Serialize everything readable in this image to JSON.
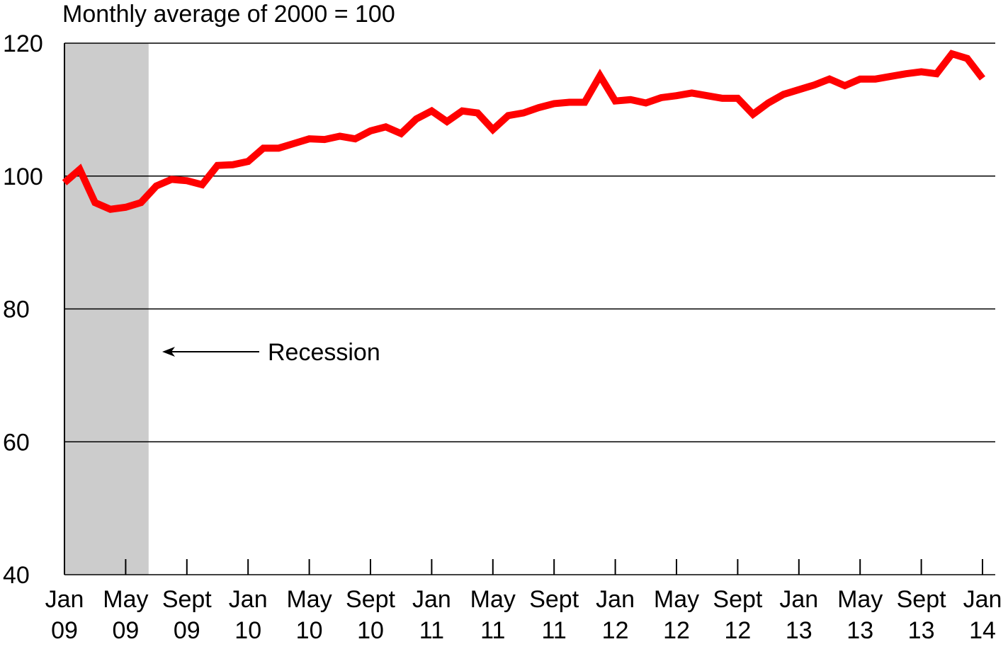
{
  "chart_data": {
    "type": "line",
    "title": "Monthly average of 2000 = 100",
    "xlabel": "",
    "ylabel": "",
    "ylim": [
      40,
      120
    ],
    "yticks": [
      40,
      60,
      80,
      100,
      120
    ],
    "grid": true,
    "x_tick_labels": [
      {
        "month": "Jan",
        "year": "09",
        "index": 0
      },
      {
        "month": "May",
        "year": "09",
        "index": 4
      },
      {
        "month": "Sept",
        "year": "09",
        "index": 8
      },
      {
        "month": "Jan",
        "year": "10",
        "index": 12
      },
      {
        "month": "May",
        "year": "10",
        "index": 16
      },
      {
        "month": "Sept",
        "year": "10",
        "index": 20
      },
      {
        "month": "Jan",
        "year": "11",
        "index": 24
      },
      {
        "month": "May",
        "year": "11",
        "index": 28
      },
      {
        "month": "Sept",
        "year": "11",
        "index": 32
      },
      {
        "month": "Jan",
        "year": "12",
        "index": 36
      },
      {
        "month": "May",
        "year": "12",
        "index": 40
      },
      {
        "month": "Sept",
        "year": "12",
        "index": 44
      },
      {
        "month": "Jan",
        "year": "13",
        "index": 48
      },
      {
        "month": "May",
        "year": "13",
        "index": 52
      },
      {
        "month": "Sept",
        "year": "13",
        "index": 56
      },
      {
        "month": "Jan",
        "year": "14",
        "index": 60
      }
    ],
    "series": [
      {
        "color": "#ff0000",
        "x": [
          "2009-01",
          "2009-02",
          "2009-03",
          "2009-04",
          "2009-05",
          "2009-06",
          "2009-07",
          "2009-08",
          "2009-09",
          "2009-10",
          "2009-11",
          "2009-12",
          "2010-01",
          "2010-02",
          "2010-03",
          "2010-04",
          "2010-05",
          "2010-06",
          "2010-07",
          "2010-08",
          "2010-09",
          "2010-10",
          "2010-11",
          "2010-12",
          "2011-01",
          "2011-02",
          "2011-03",
          "2011-04",
          "2011-05",
          "2011-06",
          "2011-07",
          "2011-08",
          "2011-09",
          "2011-10",
          "2011-11",
          "2011-12",
          "2012-01",
          "2012-02",
          "2012-03",
          "2012-04",
          "2012-05",
          "2012-06",
          "2012-07",
          "2012-08",
          "2012-09",
          "2012-10",
          "2012-11",
          "2012-12",
          "2013-01",
          "2013-02",
          "2013-03",
          "2013-04",
          "2013-05",
          "2013-06",
          "2013-07",
          "2013-08",
          "2013-09",
          "2013-10",
          "2013-11",
          "2013-12",
          "2014-01"
        ],
        "values": [
          99,
          101,
          96,
          95,
          95.3,
          96,
          98.5,
          99.5,
          99.3,
          98.7,
          101.6,
          101.7,
          102.2,
          104.2,
          104.2,
          104.9,
          105.6,
          105.5,
          106,
          105.6,
          106.8,
          107.4,
          106.4,
          108.6,
          109.8,
          108.2,
          109.8,
          109.5,
          107,
          109.1,
          109.5,
          110.3,
          110.9,
          111.1,
          111.1,
          115.1,
          111.3,
          111.5,
          111,
          111.8,
          112.1,
          112.5,
          112.1,
          111.7,
          111.7,
          109.3,
          111,
          112.3,
          113,
          113.7,
          114.6,
          113.6,
          114.6,
          114.6,
          115,
          115.4,
          115.7,
          115.4,
          118.4,
          117.7,
          114.7
        ]
      }
    ],
    "shaded_period": {
      "start": "2009-01",
      "end": "2009-06",
      "color": "#cccccc"
    },
    "annotation": {
      "text": "Recession"
    }
  }
}
